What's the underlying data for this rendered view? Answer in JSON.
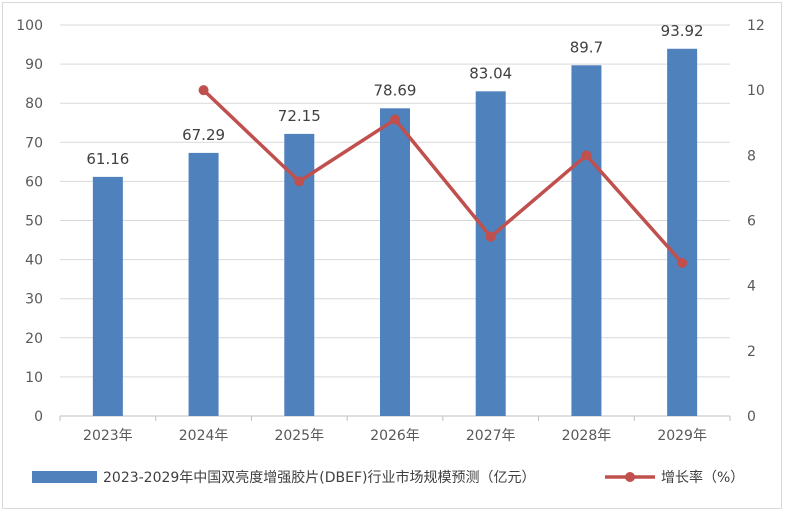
{
  "chart_data": {
    "type": "bar",
    "categories": [
      "2023年",
      "2024年",
      "2025年",
      "2026年",
      "2027年",
      "2028年",
      "2029年"
    ],
    "series": [
      {
        "name": "2023-2029年中国双亮度增强胶片(DBEF)行业市场规模预测（亿元）",
        "type": "bar",
        "axis": "left",
        "values": [
          61.16,
          67.29,
          72.15,
          78.69,
          83.04,
          89.7,
          93.92
        ],
        "labels": [
          "61.16",
          "67.29",
          "72.15",
          "78.69",
          "83.04",
          "89.7",
          "93.92"
        ],
        "color": "#4f81bd"
      },
      {
        "name": "增长率（%）",
        "type": "line",
        "axis": "right",
        "values": [
          null,
          10.0,
          7.2,
          9.1,
          5.5,
          8.0,
          4.7
        ],
        "color": "#c0504d"
      }
    ],
    "y_left": {
      "min": 0,
      "max": 100,
      "step": 10
    },
    "y_right": {
      "min": 0,
      "max": 12,
      "step": 2
    },
    "grid": true,
    "legend_position": "bottom"
  }
}
